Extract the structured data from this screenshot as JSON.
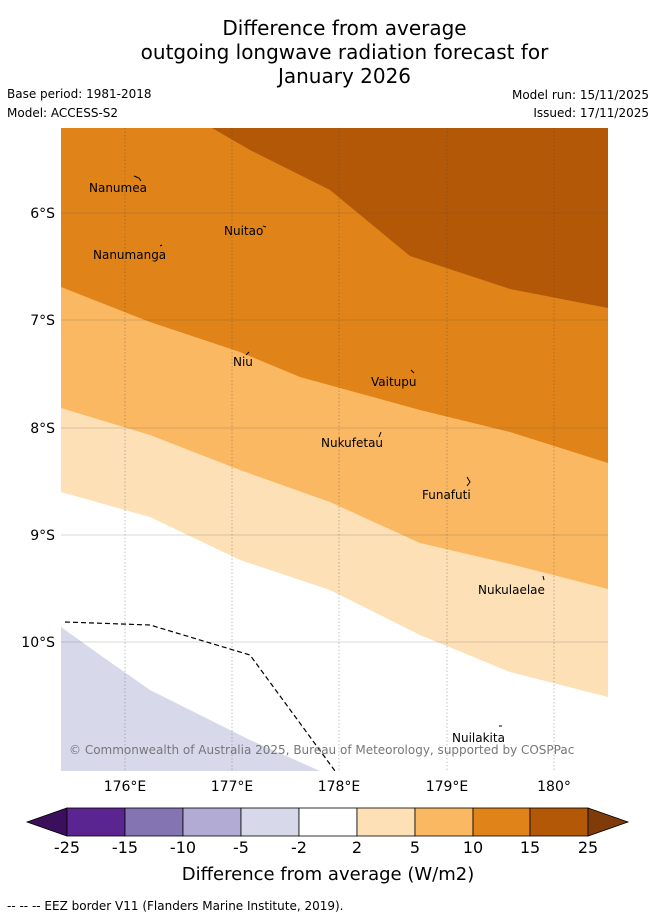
{
  "title": {
    "line1": "Difference from average",
    "line2": "outgoing longwave radiation forecast for",
    "line3": "January 2026"
  },
  "meta": {
    "base_period": "Base period: 1981-2018",
    "model": "Model: ACCESS-S2",
    "model_run": "Model run: 15/11/2025",
    "issued": "Issued: 17/11/2025"
  },
  "map": {
    "lat_ticks": [
      "6°S",
      "7°S",
      "8°S",
      "9°S",
      "10°S"
    ],
    "lon_ticks": [
      "176°E",
      "177°E",
      "178°E",
      "179°E",
      "180°"
    ],
    "places": [
      "Nanumea",
      "Nuitao",
      "Nanumanga",
      "Niu",
      "Vaitupu",
      "Nukufetau",
      "Funafuti",
      "Nukulaelae",
      "Nuilakita"
    ],
    "copyright": "© Commonwealth of Australia 2025, Bureau of Meteorology, supported by COSPPac"
  },
  "colorbar": {
    "ticks": [
      "-25",
      "-15",
      "-10",
      "-5",
      "-2",
      "2",
      "5",
      "10",
      "15",
      "25"
    ],
    "label": "Difference from average (W/m2)",
    "colors": [
      "#3b0f5c",
      "#5a2590",
      "#8474b2",
      "#b2acd4",
      "#d8d8eb",
      "#ffffff",
      "#fde0b6",
      "#fbb862",
      "#e08318",
      "#b35806",
      "#7f3b08"
    ]
  },
  "footer": {
    "legend_line": "-- -- -- EEZ border V11 (Flanders Marine Institute, 2019)."
  }
}
